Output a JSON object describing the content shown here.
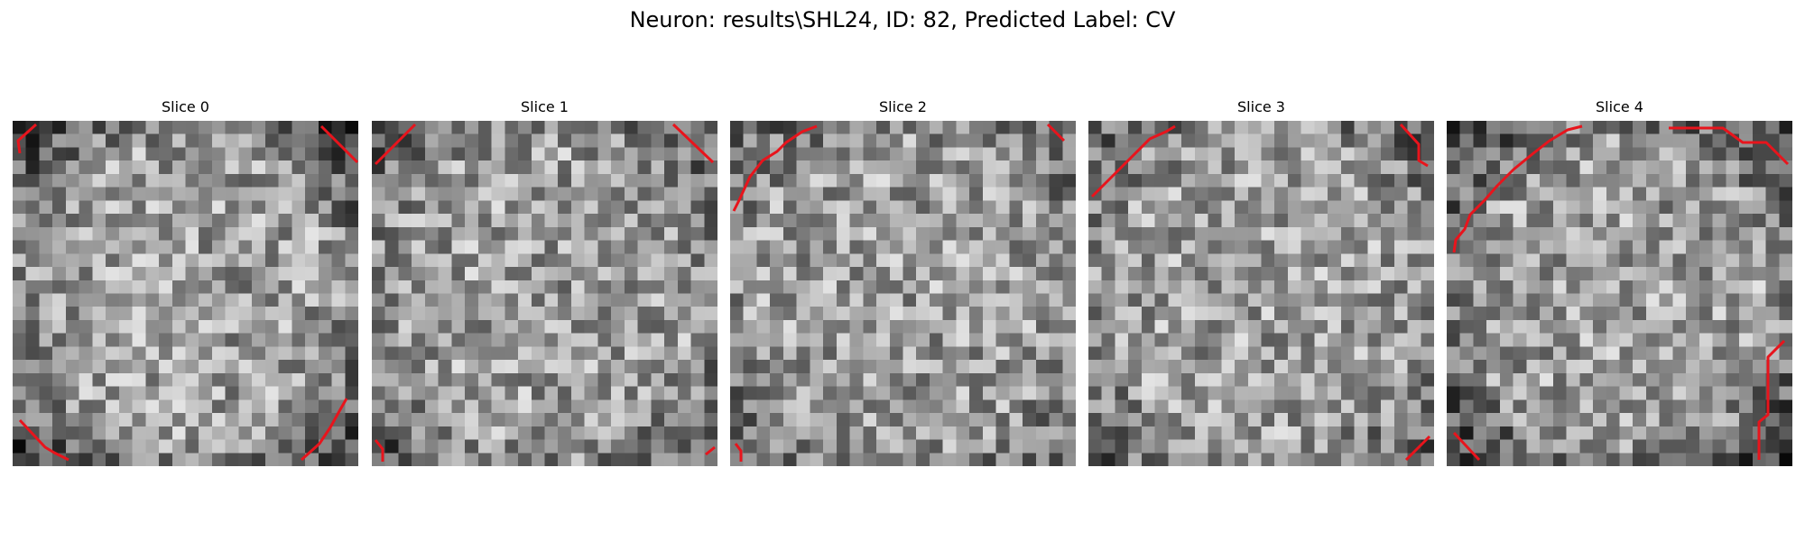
{
  "figure": {
    "title": "Neuron: results\\SHL24, ID: 82, Predicted Label: CV"
  },
  "image_grid": {
    "rows": 26,
    "cols": 26,
    "colormap": "gray"
  },
  "overlay_color": "#e8141c",
  "slices": [
    {
      "title": "Slice 0",
      "seed": 11,
      "edge_dark": 0.45
    },
    {
      "title": "Slice 1",
      "seed": 23,
      "edge_dark": 0.35
    },
    {
      "title": "Slice 2",
      "seed": 37,
      "edge_dark": 0.3
    },
    {
      "title": "Slice 3",
      "seed": 41,
      "edge_dark": 0.3
    },
    {
      "title": "Slice 4",
      "seed": 59,
      "edge_dark": 0.5
    }
  ]
}
